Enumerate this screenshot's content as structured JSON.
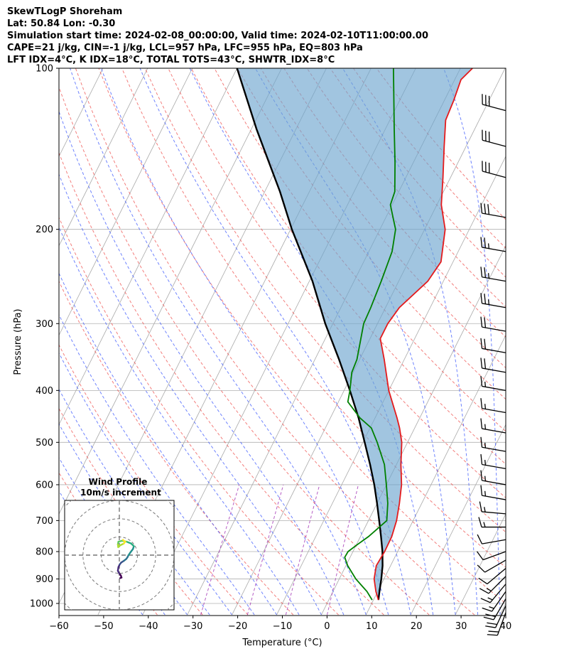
{
  "header": {
    "line1": "SkewTLogP Shoreham",
    "line2": "Lat: 50.84   Lon: -0.30",
    "line3": "Simulation start time: 2024-02-08_00:00:00, Valid time: 2024-02-10T11:00:00.00",
    "line4": "CAPE=21 j/kg, CIN=-1 j/kg, LCL=957 hPa, LFC=955 hPa, EQ=803 hPa",
    "line5": "LFT IDX=4°C, K IDX=18°C, TOTAL TOTS=43°C, SHWTR_IDX=8°C"
  },
  "chart_data": {
    "type": "line",
    "title": "SkewTLogP Shoreham",
    "xlabel": "Temperature (°C)",
    "ylabel": "Pressure (hPa)",
    "xlim": [
      -60,
      40
    ],
    "ylim": [
      1050,
      100
    ],
    "yscale": "log",
    "x_ticks": [
      -60,
      -50,
      -40,
      -30,
      -20,
      -10,
      0,
      10,
      20,
      30,
      40
    ],
    "x_tick_labels": [
      "−60",
      "−50",
      "−40",
      "−30",
      "−20",
      "−10",
      "0",
      "10",
      "20",
      "30",
      "40"
    ],
    "y_ticks": [
      1000,
      900,
      800,
      700,
      600,
      500,
      400,
      300,
      200,
      100
    ],
    "y_tick_labels": [
      "1000",
      "900",
      "800",
      "700",
      "600",
      "500",
      "400",
      "300",
      "200",
      "100"
    ],
    "grid": true,
    "colors": {
      "temperature": "#e41a1c",
      "dewpoint": "#008000",
      "parcel": "#000000",
      "cape_fill": "#6fa6d0",
      "dry_adiabat": "#ef5350",
      "moist_adiabat": "#3d5afe",
      "mixing_ratio": "#9c27b0",
      "isotherm": "#999999"
    },
    "series": [
      {
        "name": "Temperature",
        "pressure": [
          985,
          950,
          900,
          850,
          800,
          750,
          700,
          650,
          600,
          550,
          500,
          470,
          450,
          400,
          350,
          320,
          300,
          280,
          250,
          230,
          200,
          180,
          160,
          140,
          125,
          115,
          105,
          100
        ],
        "values": [
          11.1,
          9.6,
          7.8,
          6.8,
          7.1,
          7.0,
          6.3,
          5.0,
          3.4,
          1.0,
          -1.3,
          -3.4,
          -5.1,
          -10.0,
          -14.5,
          -17.7,
          -17.7,
          -16.9,
          -13.5,
          -12.7,
          -15.4,
          -19.0,
          -21.7,
          -24.9,
          -27.5,
          -27.9,
          -28.6,
          -27.3
        ]
      },
      {
        "name": "Dewpoint",
        "pressure": [
          985,
          950,
          900,
          850,
          820,
          800,
          780,
          750,
          700,
          650,
          600,
          550,
          500,
          470,
          450,
          420,
          400,
          370,
          350,
          300,
          280,
          250,
          220,
          200,
          190,
          180,
          170,
          150,
          130,
          100
        ],
        "values": [
          9.7,
          7.6,
          3.7,
          0.4,
          -1.2,
          -1.1,
          0.0,
          1.8,
          4.1,
          2.4,
          0.0,
          -2.7,
          -6.8,
          -9.7,
          -13.4,
          -17.9,
          -18.7,
          -20.3,
          -20.6,
          -23.1,
          -23.3,
          -23.9,
          -24.8,
          -26.5,
          -28.4,
          -30.4,
          -30.9,
          -34.1,
          -38.0,
          -45.0
        ]
      },
      {
        "name": "Parcel",
        "pressure": [
          985,
          950,
          900,
          850,
          800,
          750,
          700,
          650,
          600,
          550,
          500,
          450,
          400,
          350,
          300,
          250,
          200,
          170,
          150,
          130,
          100
        ],
        "values": [
          11.1,
          10.4,
          9.4,
          8.2,
          6.6,
          4.6,
          2.4,
          0.0,
          -2.7,
          -5.9,
          -9.6,
          -13.7,
          -18.7,
          -24.6,
          -31.7,
          -39.3,
          -49.7,
          -56.6,
          -62.3,
          -68.8,
          -80.0
        ]
      }
    ],
    "cape_region": "between temperature and parcel curves",
    "wind_barbs": {
      "pressure": [
        1040,
        1010,
        980,
        950,
        920,
        890,
        860,
        830,
        800,
        760,
        720,
        680,
        640,
        600,
        560,
        520,
        480,
        440,
        400,
        370,
        340,
        310,
        280,
        250,
        220,
        190,
        160,
        140,
        120
      ],
      "speed_kt": [
        20,
        20,
        20,
        15,
        15,
        15,
        10,
        10,
        10,
        10,
        15,
        15,
        15,
        15,
        15,
        15,
        15,
        15,
        15,
        20,
        20,
        20,
        25,
        25,
        25,
        30,
        30,
        30,
        30
      ],
      "direction_deg": [
        200,
        205,
        210,
        215,
        220,
        225,
        230,
        240,
        250,
        260,
        270,
        275,
        280,
        280,
        280,
        280,
        280,
        280,
        280,
        280,
        280,
        280,
        280,
        280,
        280,
        280,
        285,
        285,
        285
      ]
    },
    "hodograph": {
      "title": "Wind Profile",
      "subtitle": "10m/s increment",
      "ring_spacing_ms": 10,
      "rings": 4,
      "u": [
        0.5,
        1.2,
        0.8,
        0.0,
        -0.8,
        -0.5,
        0.2,
        1.0,
        2.5,
        3.8,
        4.5,
        5.0,
        6.0,
        7.5,
        8.0,
        6.5,
        4.0,
        1.5,
        -0.5,
        -0.8,
        -0.6,
        0.4,
        2.5,
        3.2,
        2.0
      ],
      "v": [
        3.0,
        3.3,
        4.5,
        5.5,
        7.0,
        9.0,
        10.5,
        11.5,
        12.5,
        13.5,
        14.5,
        15.5,
        17.0,
        19.0,
        20.5,
        22.0,
        23.0,
        23.5,
        23.0,
        21.5,
        20.0,
        21.0,
        22.0,
        23.0,
        24.0
      ]
    }
  }
}
